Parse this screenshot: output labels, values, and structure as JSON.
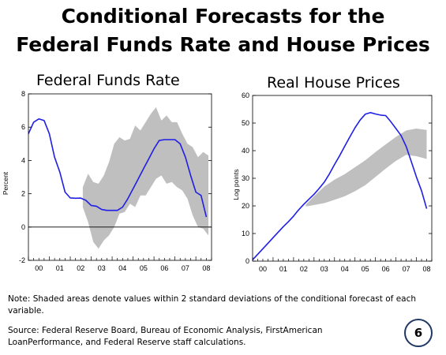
{
  "slide": {
    "title_line1": "Conditional Forecasts for the",
    "title_line2": "Federal Funds Rate and House Prices",
    "note": "Note:  Shaded areas denote values within 2 standard deviations of the conditional forecast of each variable.",
    "source": "Source:  Federal Reserve Board, Bureau of Economic Analysis, FirstAmerican LoanPerformance, and  Federal Reserve staff calculations.",
    "page_number": "6"
  },
  "chart_data": [
    {
      "type": "line",
      "title": "Federal Funds Rate",
      "ylabel": "Percent",
      "xlabel": "",
      "ylim": [
        -2,
        8
      ],
      "yticks": [
        "-2",
        "0",
        "2",
        "4",
        "6",
        "8"
      ],
      "xlim": [
        2000,
        2008.75
      ],
      "xticks": [
        "00",
        "01",
        "02",
        "03",
        "04",
        "05",
        "06",
        "07",
        "08"
      ],
      "zero_line": true,
      "series": [
        {
          "color": "#1f1fe6",
          "x": [
            2000.0,
            2000.25,
            2000.5,
            2000.75,
            2001.0,
            2001.25,
            2001.5,
            2001.75,
            2002.0,
            2002.25,
            2002.5,
            2002.75,
            2003.0,
            2003.25,
            2003.5,
            2003.75,
            2004.0,
            2004.25,
            2004.5,
            2004.75,
            2005.0,
            2005.25,
            2005.5,
            2005.75,
            2006.0,
            2006.25,
            2006.5,
            2006.75,
            2007.0,
            2007.25,
            2007.5,
            2007.75,
            2008.0,
            2008.25,
            2008.5
          ],
          "values": [
            5.6,
            6.3,
            6.5,
            6.4,
            5.6,
            4.2,
            3.3,
            2.1,
            1.75,
            1.73,
            1.74,
            1.6,
            1.3,
            1.25,
            1.05,
            1.0,
            1.0,
            1.0,
            1.2,
            1.7,
            2.3,
            2.9,
            3.5,
            4.1,
            4.7,
            5.2,
            5.25,
            5.25,
            5.25,
            5.0,
            4.2,
            3.1,
            2.1,
            1.9,
            0.6
          ]
        }
      ],
      "band": {
        "color": "#bfbfbf",
        "x": [
          2002.6,
          2002.85,
          2003.1,
          2003.35,
          2003.6,
          2003.85,
          2004.1,
          2004.35,
          2004.6,
          2004.85,
          2005.1,
          2005.35,
          2005.6,
          2005.85,
          2006.1,
          2006.35,
          2006.6,
          2006.85,
          2007.1,
          2007.35,
          2007.6,
          2007.85,
          2008.1,
          2008.35,
          2008.6
        ],
        "upper": [
          2.4,
          3.2,
          2.7,
          2.6,
          3.1,
          3.9,
          5.0,
          5.4,
          5.2,
          5.3,
          6.1,
          5.8,
          6.3,
          6.8,
          7.2,
          6.4,
          6.7,
          6.3,
          6.3,
          5.6,
          5.0,
          4.8,
          4.2,
          4.5,
          4.3
        ],
        "lower": [
          1.2,
          0.3,
          -0.9,
          -1.3,
          -0.8,
          -0.5,
          0.0,
          0.8,
          0.9,
          1.4,
          1.2,
          1.9,
          1.9,
          2.4,
          2.9,
          3.1,
          2.6,
          2.7,
          2.4,
          2.2,
          1.7,
          0.7,
          0.0,
          -0.1,
          -0.5
        ]
      }
    },
    {
      "type": "line",
      "title": "Real House Prices",
      "ylabel": "Log points",
      "xlabel": "",
      "ylim": [
        0,
        60
      ],
      "yticks": [
        "0",
        "10",
        "20",
        "30",
        "40",
        "50",
        "60"
      ],
      "xlim": [
        2000,
        2008.75
      ],
      "xticks": [
        "00",
        "01",
        "02",
        "03",
        "04",
        "05",
        "06",
        "07",
        "08"
      ],
      "zero_line": false,
      "series": [
        {
          "color": "#1f1fe6",
          "x": [
            2000.0,
            2000.25,
            2000.5,
            2000.75,
            2001.0,
            2001.25,
            2001.5,
            2001.75,
            2002.0,
            2002.25,
            2002.5,
            2002.75,
            2003.0,
            2003.25,
            2003.5,
            2003.75,
            2004.0,
            2004.25,
            2004.5,
            2004.75,
            2005.0,
            2005.25,
            2005.5,
            2005.75,
            2006.0,
            2006.25,
            2006.5,
            2006.75,
            2007.0,
            2007.25,
            2007.5,
            2007.75,
            2008.0,
            2008.25,
            2008.5
          ],
          "values": [
            0.5,
            2.5,
            4.5,
            6.5,
            8.5,
            10.5,
            12.5,
            14.3,
            16.3,
            18.6,
            20.6,
            22.4,
            24.2,
            26.3,
            28.6,
            31.6,
            35.0,
            38.2,
            41.6,
            45.0,
            48.3,
            51.1,
            53.2,
            53.8,
            53.3,
            52.9,
            52.7,
            50.5,
            48.0,
            45.5,
            41.5,
            36.0,
            30.5,
            25.5,
            19.0
          ]
        }
      ],
      "band": {
        "color": "#bfbfbf",
        "x": [
          2002.6,
          2003.0,
          2003.5,
          2004.0,
          2004.5,
          2005.0,
          2005.5,
          2006.0,
          2006.5,
          2007.0,
          2007.5,
          2008.0,
          2008.5
        ],
        "upper": [
          20.5,
          23.5,
          27.0,
          29.5,
          31.5,
          34.0,
          36.5,
          39.5,
          42.3,
          45.0,
          47.3,
          48.0,
          47.5
        ],
        "lower": [
          19.8,
          20.3,
          21.0,
          22.2,
          23.5,
          25.3,
          27.5,
          30.5,
          33.5,
          36.3,
          38.5,
          38.0,
          37.0
        ]
      }
    }
  ]
}
